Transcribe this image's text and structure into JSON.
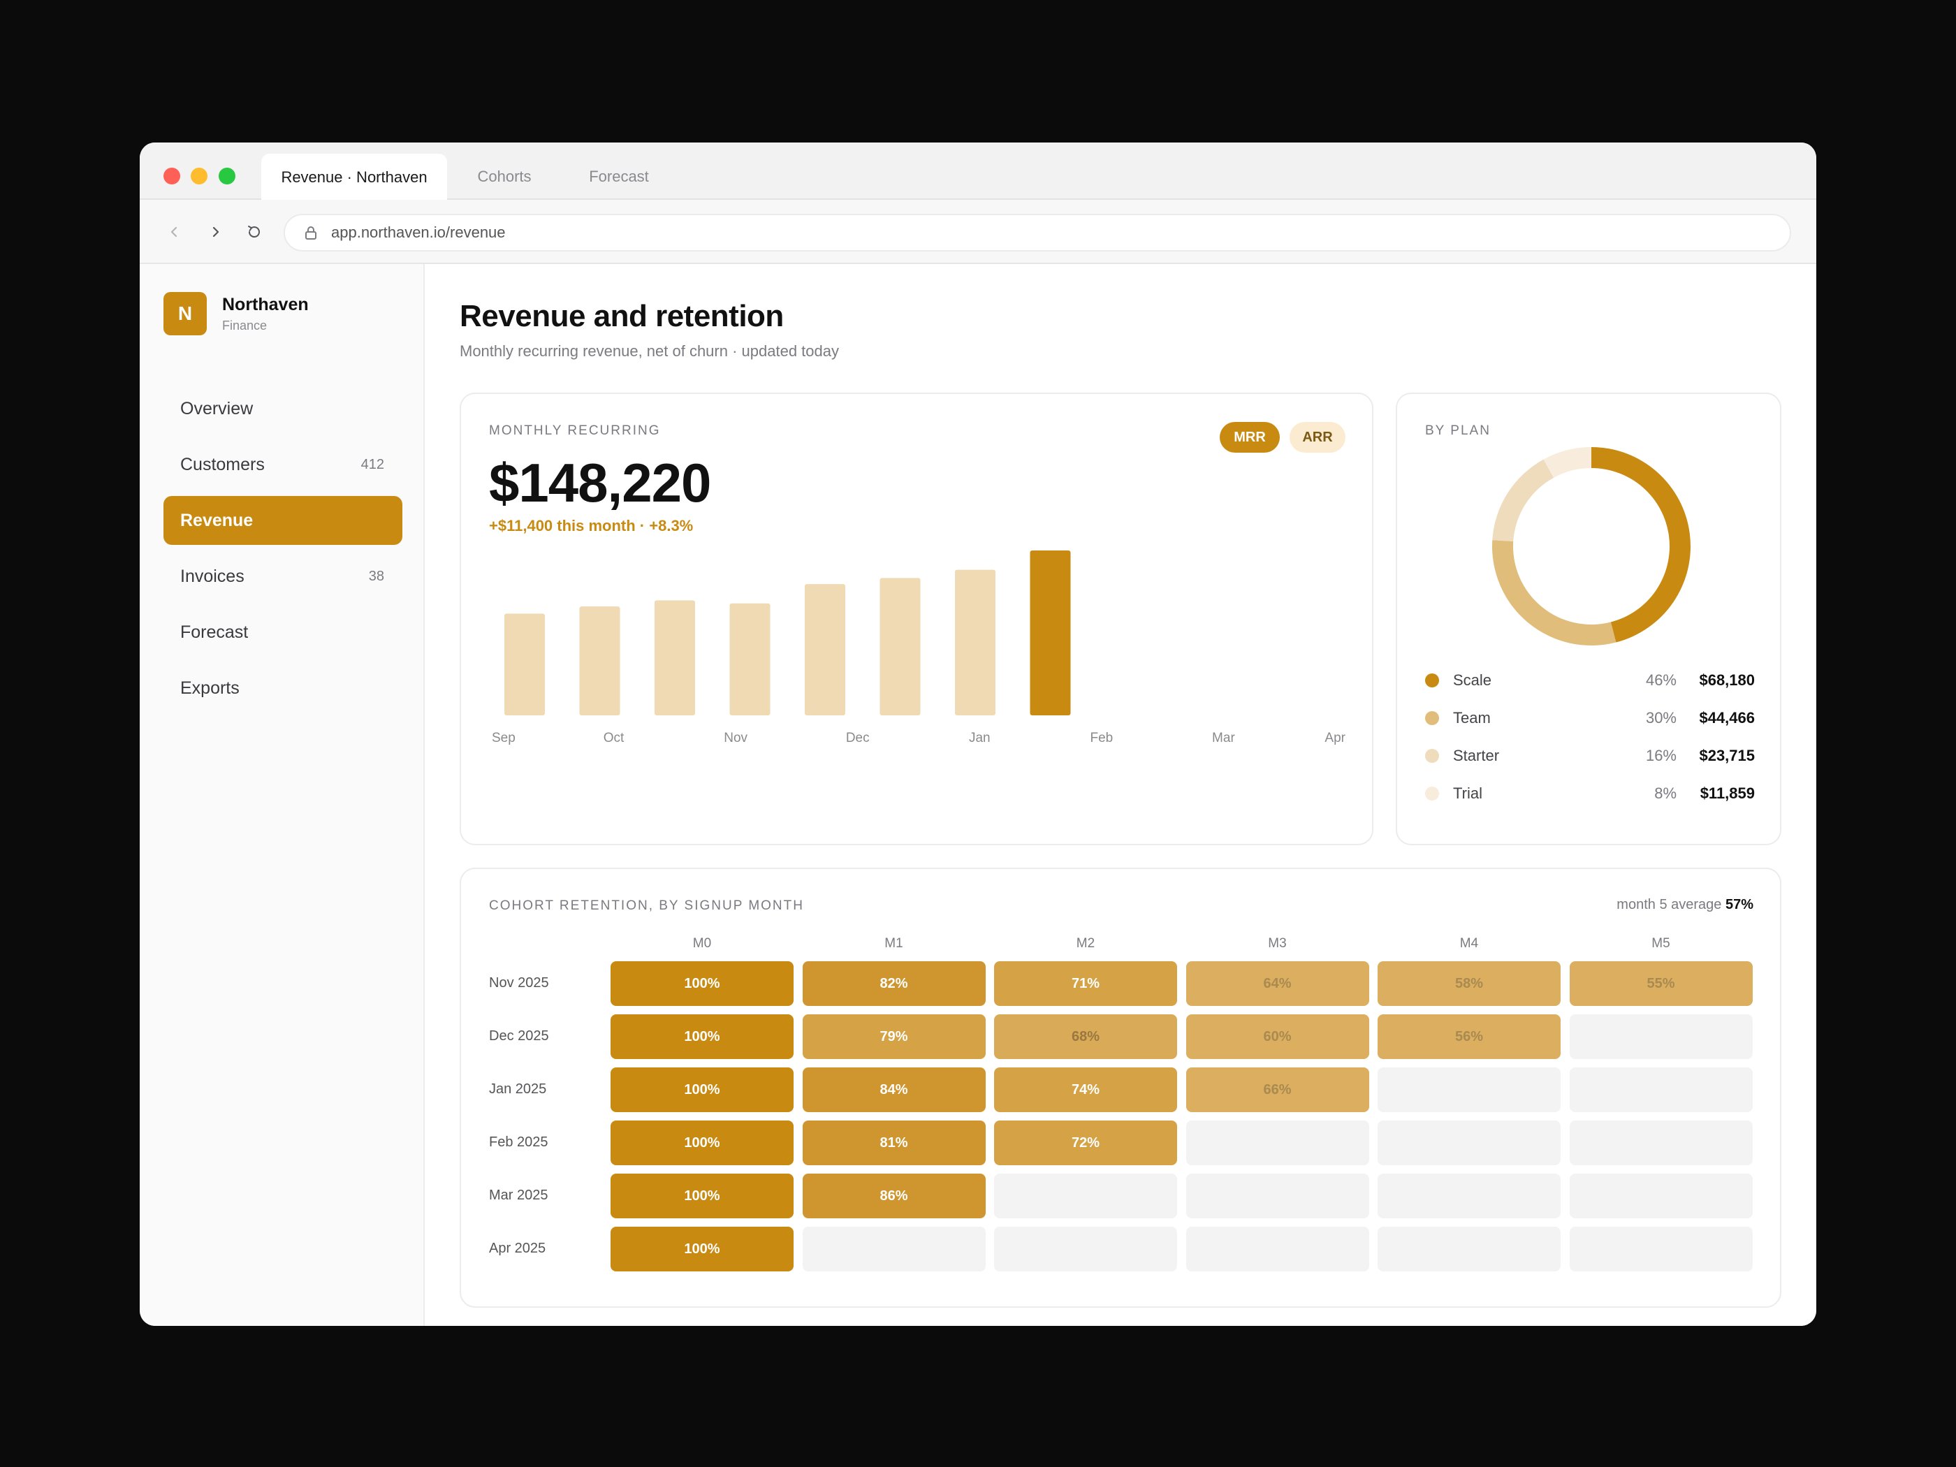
{
  "browser": {
    "tabs": [
      "Revenue · Northaven",
      "Cohorts",
      "Forecast"
    ],
    "url": "app.northaven.io/revenue"
  },
  "brand": {
    "initial": "N",
    "name": "Northaven",
    "subtitle": "Finance"
  },
  "sidebar": {
    "items": [
      {
        "label": "Overview",
        "count": ""
      },
      {
        "label": "Customers",
        "count": "412"
      },
      {
        "label": "Revenue",
        "count": "",
        "active": true
      },
      {
        "label": "Invoices",
        "count": "38"
      },
      {
        "label": "Forecast",
        "count": ""
      },
      {
        "label": "Exports",
        "count": ""
      }
    ]
  },
  "header": {
    "title": "Revenue and retention",
    "subtitle": "Monthly recurring revenue, net of churn · updated today"
  },
  "mrr_card": {
    "eyebrow": "MONTHLY RECURRING",
    "value": "$148,220",
    "delta": "+$11,400 this month · +8.3%",
    "toggle": [
      "MRR",
      "ARR"
    ]
  },
  "plan_card": {
    "eyebrow": "BY PLAN",
    "plans": [
      {
        "name": "Scale",
        "pct": "46%",
        "value": "$68,180",
        "color": "#c98a12"
      },
      {
        "name": "Team",
        "pct": "30%",
        "value": "$44,466",
        "color": "#e0bd7a"
      },
      {
        "name": "Starter",
        "pct": "16%",
        "value": "$23,715",
        "color": "#eedcbc"
      },
      {
        "name": "Trial",
        "pct": "8%",
        "value": "$11,859",
        "color": "#f8ecdc"
      }
    ]
  },
  "cohort_card": {
    "eyebrow": "COHORT RETENTION, BY SIGNUP MONTH",
    "avg_label": "month 5 average",
    "avg_value": "57%",
    "columns": [
      "M0",
      "M1",
      "M2",
      "M3",
      "M4",
      "M5"
    ],
    "rows": [
      {
        "label": "Nov 2025",
        "cells": [
          "100%",
          "82%",
          "71%",
          "64%",
          "58%",
          "55%"
        ]
      },
      {
        "label": "Dec 2025",
        "cells": [
          "100%",
          "79%",
          "68%",
          "60%",
          "56%",
          ""
        ]
      },
      {
        "label": "Jan 2025",
        "cells": [
          "100%",
          "84%",
          "74%",
          "66%",
          "",
          ""
        ]
      },
      {
        "label": "Feb 2025",
        "cells": [
          "100%",
          "81%",
          "72%",
          "",
          "",
          ""
        ]
      },
      {
        "label": "Mar 2025",
        "cells": [
          "100%",
          "86%",
          "",
          "",
          "",
          ""
        ]
      },
      {
        "label": "Apr 2025",
        "cells": [
          "100%",
          "",
          "",
          "",
          "",
          ""
        ]
      }
    ]
  },
  "colors": {
    "accent": "#c98a12",
    "accent_light": "#efdab4",
    "empty_cell": "#f3f3f4"
  },
  "chart_data": [
    {
      "type": "bar",
      "categories": [
        "Sep",
        "Oct",
        "Nov",
        "Dec",
        "Jan",
        "Feb",
        "Mar",
        "Apr"
      ],
      "bar_values": [
        100,
        107,
        113,
        110,
        129,
        135,
        143,
        162
      ],
      "highlight_last": true,
      "ylim": [
        0,
        162
      ],
      "grid": false,
      "note": "relative bar heights; y axis unlabeled"
    },
    {
      "type": "pie",
      "donut": true,
      "labels": [
        "Scale",
        "Team",
        "Starter",
        "Trial"
      ],
      "values": [
        46,
        30,
        16,
        8
      ]
    }
  ]
}
